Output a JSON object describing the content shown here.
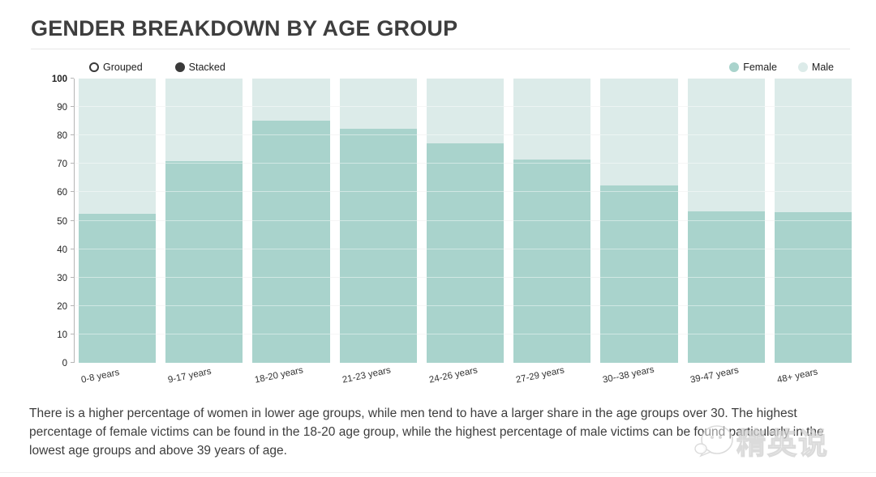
{
  "page": {
    "title": "GENDER BREAKDOWN BY AGE GROUP",
    "caption": "There is a higher percentage of women in lower age groups, while men tend to have a larger share in the age groups over 30. The highest percentage of female victims can be found in the 18-20 age group, while the highest percentage of male victims can be found particularly in the lowest age groups and above 39 years of age."
  },
  "controls": {
    "options": [
      {
        "label": "Grouped",
        "selected": false
      },
      {
        "label": "Stacked",
        "selected": true
      }
    ]
  },
  "watermark": {
    "icon": "chat-bubbles-icon",
    "text": "精英说"
  },
  "colors": {
    "female": "#a9d3cc",
    "male": "#dcebe9"
  },
  "chart_data": {
    "type": "bar",
    "stacked": true,
    "title": "GENDER BREAKDOWN BY AGE GROUP",
    "categories": [
      "0-8 years",
      "9-17 years",
      "18-20 years",
      "21-23 years",
      "24-26 years",
      "27-29 years",
      "30--38 years",
      "39-47 years",
      "48+ years"
    ],
    "series": [
      {
        "name": "Female",
        "color": "#a9d3cc",
        "values": [
          52.3,
          71.0,
          85.2,
          82.3,
          77.1,
          71.6,
          62.4,
          53.4,
          52.9
        ]
      },
      {
        "name": "Male",
        "color": "#dcebe9",
        "values": [
          47.7,
          29.0,
          14.8,
          17.7,
          22.9,
          28.4,
          37.6,
          46.6,
          47.1
        ]
      }
    ],
    "xlabel": "",
    "ylabel": "",
    "ylim": [
      0,
      100
    ],
    "ytick_step": 10,
    "grid": true,
    "legend_position": "top-right"
  }
}
